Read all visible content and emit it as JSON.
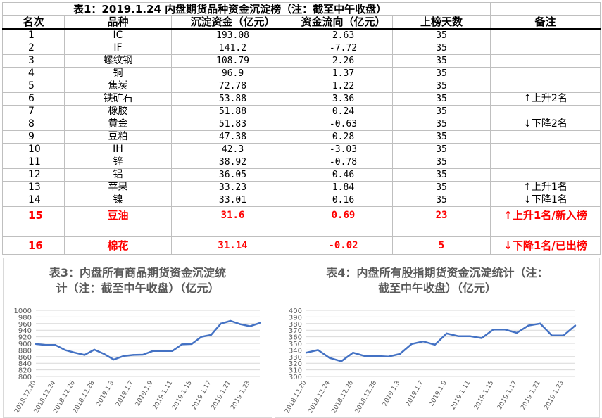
{
  "table": {
    "title": "表1：2019.1.24 内盘期货品种资金沉淀榜（注：截至中午收盘）",
    "headers": [
      "名次",
      "品种",
      "沉淀资金（亿元）",
      "资金流向（亿元）",
      "上榜天数",
      "备注"
    ],
    "rows": [
      {
        "rank": "1",
        "name": "IC",
        "fund": "193.08",
        "flow": "2.63",
        "days": "35",
        "note": ""
      },
      {
        "rank": "2",
        "name": "IF",
        "fund": "141.2",
        "flow": "-7.72",
        "days": "35",
        "note": ""
      },
      {
        "rank": "3",
        "name": "螺纹钢",
        "fund": "108.79",
        "flow": "2.26",
        "days": "35",
        "note": ""
      },
      {
        "rank": "4",
        "name": "铜",
        "fund": "96.9",
        "flow": "1.37",
        "days": "35",
        "note": ""
      },
      {
        "rank": "5",
        "name": "焦炭",
        "fund": "72.78",
        "flow": "1.22",
        "days": "35",
        "note": ""
      },
      {
        "rank": "6",
        "name": "铁矿石",
        "fund": "53.88",
        "flow": "3.36",
        "days": "35",
        "note": "↑上升2名"
      },
      {
        "rank": "7",
        "name": "橡胶",
        "fund": "51.88",
        "flow": "0.24",
        "days": "35",
        "note": ""
      },
      {
        "rank": "8",
        "name": "黄金",
        "fund": "51.83",
        "flow": "-0.63",
        "days": "35",
        "note": "↓下降2名"
      },
      {
        "rank": "9",
        "name": "豆粕",
        "fund": "47.38",
        "flow": "0.28",
        "days": "35",
        "note": ""
      },
      {
        "rank": "10",
        "name": "IH",
        "fund": "42.3",
        "flow": "-3.03",
        "days": "35",
        "note": ""
      },
      {
        "rank": "11",
        "name": "锌",
        "fund": "38.92",
        "flow": "-0.78",
        "days": "35",
        "note": ""
      },
      {
        "rank": "12",
        "name": "铝",
        "fund": "36.05",
        "flow": "0.46",
        "days": "35",
        "note": ""
      },
      {
        "rank": "13",
        "name": "苹果",
        "fund": "33.23",
        "flow": "1.84",
        "days": "35",
        "note": "↑上升1名"
      },
      {
        "rank": "14",
        "name": "镍",
        "fund": "33.01",
        "flow": "0.16",
        "days": "35",
        "note": "↓下降1名"
      },
      {
        "rank": "15",
        "name": "豆油",
        "fund": "31.6",
        "flow": "0.69",
        "days": "23",
        "note": "↑上升1名/新入榜"
      },
      {
        "rank": "16",
        "name": "棉花",
        "fund": "31.14",
        "flow": "-0.02",
        "days": "5",
        "note": "↓下降1名/已出榜"
      }
    ]
  },
  "colors": {
    "line": "#4472c4",
    "highlight": "#ff0000",
    "grid": "#d9d9d9",
    "axis_text": "#595959"
  },
  "chart_data": [
    {
      "type": "line",
      "title": "表3：内盘所有商品期货资金沉淀统计（注：截至中午收盘）（亿元）",
      "title_lines": [
        "表3：内盘所有商品期货资金沉淀统",
        "计（注：截至中午收盘）（亿元）"
      ],
      "ylim": [
        800,
        1000
      ],
      "yticks": [
        800,
        820,
        840,
        860,
        880,
        900,
        920,
        940,
        960,
        980,
        1000
      ],
      "xtick_labels": [
        "2018.12.20",
        "2018.12.24",
        "2018.12.26",
        "2018.12.28",
        "2019.1.3",
        "2019.1.7",
        "2019.1.9",
        "2019.1.11",
        "2019.1.15",
        "2019.1.17",
        "2019.1.21",
        "2019.1.23"
      ],
      "x": [
        "2018.12.20",
        "2018.12.21",
        "2018.12.24",
        "2018.12.25",
        "2018.12.26",
        "2018.12.27",
        "2018.12.28",
        "2019.1.2",
        "2019.1.3",
        "2019.1.4",
        "2019.1.7",
        "2019.1.8",
        "2019.1.9",
        "2019.1.10",
        "2019.1.11",
        "2019.1.14",
        "2019.1.15",
        "2019.1.16",
        "2019.1.17",
        "2019.1.18",
        "2019.1.21",
        "2019.1.22",
        "2019.1.23",
        "2019.1.24"
      ],
      "values": [
        898,
        895,
        895,
        880,
        872,
        865,
        881,
        868,
        851,
        862,
        865,
        866,
        877,
        877,
        877,
        897,
        898,
        920,
        926,
        960,
        968,
        958,
        952,
        962
      ]
    },
    {
      "type": "line",
      "title": "表4：内盘所有股指期货资金沉淀统计（注：截至中午收盘）（亿元）",
      "title_lines": [
        "表4：内盘所有股指期货资金沉淀统计（注：",
        "截至中午收盘）（亿元）"
      ],
      "ylim": [
        300,
        400
      ],
      "yticks": [
        300,
        310,
        320,
        330,
        340,
        350,
        360,
        370,
        380,
        390,
        400
      ],
      "xtick_labels": [
        "2018.12.20",
        "2018.12.24",
        "2018.12.26",
        "2018.12.28",
        "2019.1.3",
        "2019.1.7",
        "2019.1.9",
        "2019.1.11",
        "2019.1.15",
        "2019.1.17",
        "2019.1.21",
        "2019.1.23"
      ],
      "x": [
        "2018.12.20",
        "2018.12.21",
        "2018.12.24",
        "2018.12.25",
        "2018.12.26",
        "2018.12.27",
        "2018.12.28",
        "2019.1.2",
        "2019.1.3",
        "2019.1.4",
        "2019.1.7",
        "2019.1.8",
        "2019.1.9",
        "2019.1.10",
        "2019.1.11",
        "2019.1.14",
        "2019.1.15",
        "2019.1.16",
        "2019.1.17",
        "2019.1.18",
        "2019.1.21",
        "2019.1.22",
        "2019.1.23",
        "2019.1.24"
      ],
      "values": [
        336,
        340,
        328,
        323,
        336,
        331,
        331,
        330,
        334,
        349,
        353,
        348,
        365,
        361,
        361,
        358,
        371,
        371,
        366,
        377,
        380,
        362,
        362,
        377
      ]
    }
  ]
}
